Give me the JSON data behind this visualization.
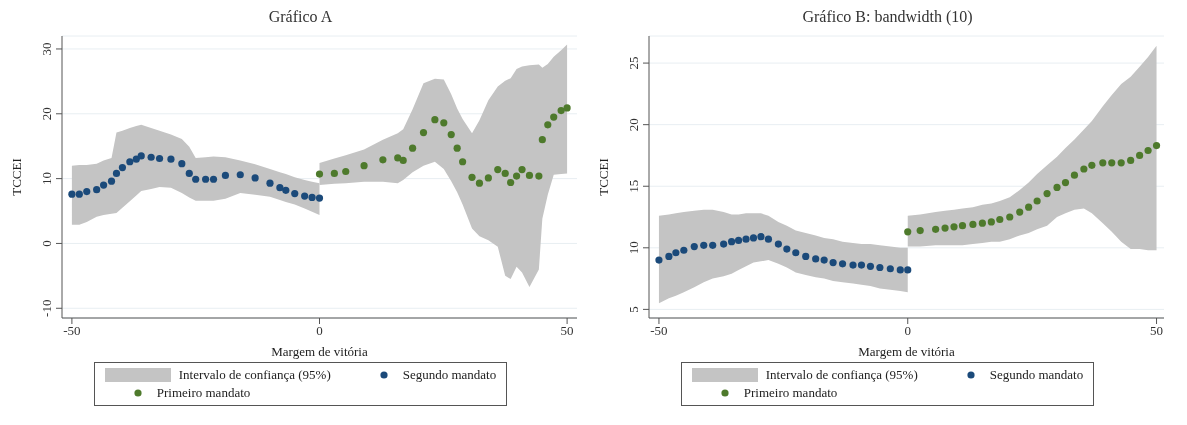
{
  "chart_data": [
    {
      "type": "scatter",
      "title": "Gráfico A",
      "xlabel": "Margem de vitória",
      "ylabel": "TCCEI",
      "xlim": [
        -52,
        52
      ],
      "xticks": [
        -50,
        0,
        50
      ],
      "ylim": [
        -11.5,
        32
      ],
      "yticks": [
        -10,
        0,
        10,
        20,
        30
      ],
      "grid": "y",
      "legend": "bottom",
      "marker": "circle",
      "annotations": [
        "Intervalo de confiança (95%)"
      ],
      "series": [
        {
          "name": "Segundo mandato",
          "color": "#1b4a7a",
          "x": [
            -50,
            -48.5,
            -47,
            -45,
            -43.6,
            -42,
            -41,
            -39.8,
            -38.3,
            -37,
            -36,
            -34,
            -32.3,
            -30,
            -27.8,
            -26.3,
            -25,
            -23,
            -21.4,
            -19,
            -16,
            -13,
            -10,
            -8,
            -6.8,
            -5,
            -3,
            -1.5,
            0
          ],
          "values": [
            7.6,
            7.6,
            8.0,
            8.3,
            9.0,
            9.6,
            10.8,
            11.7,
            12.6,
            13.0,
            13.5,
            13.3,
            13.1,
            13.0,
            12.3,
            10.8,
            9.9,
            9.9,
            9.9,
            10.5,
            10.6,
            10.1,
            9.3,
            8.6,
            8.2,
            7.7,
            7.3,
            7.1,
            7.0
          ],
          "lower": [
            2.9,
            2.9,
            3.3,
            4.1,
            4.4,
            4.6,
            4.7,
            5.5,
            6.5,
            7.4,
            8.1,
            8.4,
            8.7,
            8.6,
            7.8,
            7.1,
            6.6,
            6.6,
            6.6,
            6.9,
            7.8,
            7.5,
            7.2,
            6.7,
            6.4,
            6.0,
            5.4,
            4.9,
            4.4
          ],
          "upper": [
            12.0,
            12.1,
            12.1,
            12.3,
            12.8,
            13.2,
            17.1,
            17.4,
            17.8,
            18.1,
            18.3,
            17.8,
            17.4,
            16.8,
            16.1,
            14.9,
            13.2,
            13.3,
            13.4,
            13.3,
            12.8,
            12.2,
            11.5,
            11.0,
            10.7,
            10.2,
            9.8,
            9.5,
            9.3
          ]
        },
        {
          "name": "Primeiro mandato",
          "color": "#4e7a2c",
          "x": [
            0,
            3,
            5.3,
            9,
            12.8,
            15.8,
            16.9,
            18.8,
            21,
            23.3,
            25.1,
            26.6,
            27.8,
            28.9,
            30.8,
            32.3,
            34.1,
            36,
            37.5,
            38.6,
            39.8,
            40.9,
            42.4,
            44.3,
            45,
            46.1,
            47.3,
            48.8,
            50
          ],
          "values": [
            10.7,
            10.8,
            11.1,
            12.0,
            12.9,
            13.2,
            12.8,
            14.7,
            17.1,
            19.1,
            18.6,
            16.8,
            14.7,
            12.6,
            10.2,
            9.3,
            10.1,
            11.4,
            10.8,
            9.4,
            10.4,
            11.4,
            10.5,
            10.4,
            16.0,
            18.3,
            19.5,
            20.5,
            20.9
          ],
          "lower": [
            9.0,
            9.2,
            9.3,
            9.5,
            9.5,
            9.3,
            9.8,
            11.0,
            12.0,
            12.6,
            11.5,
            9.6,
            7.9,
            6.0,
            2.3,
            1.1,
            0.5,
            -0.5,
            -5.0,
            -5.5,
            -3.6,
            -4.5,
            -6.7,
            -4.0,
            3.8,
            7.5,
            10.6,
            10.7,
            10.8
          ],
          "upper": [
            12.4,
            13.1,
            13.6,
            14.5,
            16.0,
            17.0,
            17.6,
            20.7,
            24.7,
            25.4,
            25.3,
            23.0,
            20.8,
            19.2,
            17.0,
            19.0,
            22.1,
            24.2,
            25.1,
            25.5,
            26.9,
            27.3,
            27.5,
            27.6,
            27.1,
            27.7,
            28.8,
            29.8,
            30.7
          ]
        }
      ]
    },
    {
      "type": "scatter",
      "title": "Gráfico B: bandwidth (10)",
      "xlabel": "Margem de vitória",
      "ylabel": "TCCEI",
      "xlim": [
        -52,
        51.5
      ],
      "xticks": [
        -50,
        0,
        50
      ],
      "ylim": [
        4.3,
        27.2
      ],
      "yticks": [
        5,
        10,
        15,
        20,
        25
      ],
      "grid": "y",
      "legend": "bottom",
      "marker": "circle",
      "annotations": [
        "Intervalo de confiança (95%)"
      ],
      "series": [
        {
          "name": "Segundo mandato",
          "color": "#1b4a7a",
          "x": [
            -50,
            -48,
            -46.6,
            -45,
            -42.9,
            -41,
            -39.2,
            -37,
            -35.4,
            -34,
            -32.5,
            -31,
            -29.5,
            -28,
            -26,
            -24.3,
            -22.5,
            -20.5,
            -18.5,
            -16.8,
            -15,
            -13.1,
            -11,
            -9.3,
            -7.5,
            -5.6,
            -3.5,
            -1.5,
            0
          ],
          "values": [
            9.0,
            9.3,
            9.6,
            9.8,
            10.1,
            10.2,
            10.2,
            10.3,
            10.5,
            10.6,
            10.7,
            10.8,
            10.9,
            10.7,
            10.3,
            9.9,
            9.6,
            9.3,
            9.1,
            9.0,
            8.8,
            8.7,
            8.6,
            8.6,
            8.5,
            8.4,
            8.3,
            8.2,
            8.2
          ],
          "lower": [
            5.5,
            5.9,
            6.1,
            6.4,
            6.8,
            7.2,
            7.5,
            7.7,
            7.9,
            8.2,
            8.5,
            8.8,
            8.9,
            9.0,
            8.7,
            8.4,
            8.0,
            7.8,
            7.6,
            7.5,
            7.3,
            7.2,
            7.1,
            7.0,
            6.9,
            6.7,
            6.6,
            6.5,
            6.4
          ],
          "upper": [
            12.6,
            12.7,
            12.8,
            12.9,
            13.0,
            13.1,
            13.1,
            12.9,
            12.7,
            12.7,
            12.8,
            12.8,
            12.8,
            12.6,
            12.1,
            11.8,
            11.4,
            11.2,
            11.0,
            10.8,
            10.7,
            10.5,
            10.4,
            10.3,
            10.3,
            10.2,
            10.1,
            10.0,
            10.0
          ]
        },
        {
          "name": "Primeiro mandato",
          "color": "#4e7a2c",
          "x": [
            0,
            2.5,
            5.6,
            7.5,
            9.3,
            11,
            13.1,
            15,
            16.8,
            18.5,
            20.5,
            22.5,
            24.3,
            26,
            28,
            30,
            31.7,
            33.5,
            35.4,
            37,
            39.2,
            41,
            42.9,
            44.8,
            46.6,
            48.3,
            50
          ],
          "values": [
            11.3,
            11.4,
            11.5,
            11.6,
            11.7,
            11.8,
            11.9,
            12.0,
            12.1,
            12.3,
            12.5,
            12.9,
            13.3,
            13.8,
            14.4,
            14.9,
            15.3,
            15.9,
            16.4,
            16.7,
            16.9,
            16.9,
            16.9,
            17.1,
            17.5,
            17.9,
            18.3
          ],
          "lower": [
            10.1,
            10.1,
            10.2,
            10.2,
            10.2,
            10.2,
            10.3,
            10.4,
            10.5,
            10.5,
            10.7,
            11.0,
            11.2,
            11.5,
            11.8,
            12.5,
            12.8,
            13.1,
            13.2,
            12.8,
            12.0,
            11.3,
            10.5,
            9.9,
            9.9,
            9.8,
            9.8
          ],
          "upper": [
            12.6,
            12.7,
            12.9,
            13.0,
            13.1,
            13.2,
            13.3,
            13.5,
            13.6,
            13.8,
            14.1,
            14.7,
            15.3,
            16.0,
            16.7,
            17.4,
            18.1,
            18.8,
            19.6,
            20.3,
            21.5,
            22.4,
            23.3,
            23.9,
            24.7,
            25.5,
            26.4
          ]
        }
      ]
    }
  ]
}
